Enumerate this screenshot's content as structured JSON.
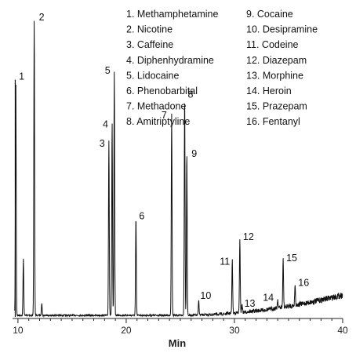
{
  "chart_data": {
    "type": "line",
    "xlabel": "Min",
    "xlim": [
      9.5,
      40
    ],
    "xticks": [
      10,
      20,
      30,
      40
    ],
    "grid": false,
    "legend_position": "top-right",
    "peaks": [
      {
        "label": "1",
        "compound": "Methamphetamine",
        "x": 9.8,
        "height": 0.8
      },
      {
        "label": "2",
        "compound": "Nicotine",
        "x": 11.5,
        "height": 1.0
      },
      {
        "label": "3",
        "compound": "Caffeine",
        "x": 18.4,
        "height": 0.59
      },
      {
        "label": "4",
        "compound": "Diphenhydramine",
        "x": 18.7,
        "height": 0.65
      },
      {
        "label": "5",
        "compound": "Lidocaine",
        "x": 18.9,
        "height": 0.82
      },
      {
        "label": "6",
        "compound": "Phenobarbital",
        "x": 20.9,
        "height": 0.33
      },
      {
        "label": "7",
        "compound": "Methadone",
        "x": 24.2,
        "height": 0.68
      },
      {
        "label": "8",
        "compound": "Amitriptyline",
        "x": 25.4,
        "height": 0.74
      },
      {
        "label": "9",
        "compound": "Cocaine",
        "x": 25.6,
        "height": 0.55
      },
      {
        "label": "10",
        "compound": "Desipramine",
        "x": 26.7,
        "height": 0.05
      },
      {
        "label": "11",
        "compound": "Codeine",
        "x": 29.8,
        "height": 0.18
      },
      {
        "label": "12",
        "compound": "Diazepam",
        "x": 30.5,
        "height": 0.25
      },
      {
        "label": "13",
        "compound": "Morphine",
        "x": 30.7,
        "height": 0.03
      },
      {
        "label": "14",
        "compound": "Heroin",
        "x": 34.0,
        "height": 0.03
      },
      {
        "label": "15",
        "compound": "Prazepam",
        "x": 34.5,
        "height": 0.16
      },
      {
        "label": "16",
        "compound": "Fentanyl",
        "x": 35.6,
        "height": 0.07
      }
    ],
    "unlabeled_peaks": [
      {
        "x": 10.5,
        "height": 0.19
      },
      {
        "x": 12.2,
        "height": 0.04
      }
    ],
    "legend": [
      "1.  Methamphetamine",
      "2.  Nicotine",
      "3.  Caffeine",
      "4.  Diphenhydramine",
      "5. Lidocaine",
      "6.  Phenobarbital",
      "7.  Methadone",
      "8.  Amitriptyline",
      "9.  Cocaine",
      "10.  Desipramine",
      "11.  Codeine",
      "12.  Diazepam",
      "13.  Morphine",
      "14.  Heroin",
      "15.  Prazepam",
      "16.  Fentanyl"
    ]
  }
}
